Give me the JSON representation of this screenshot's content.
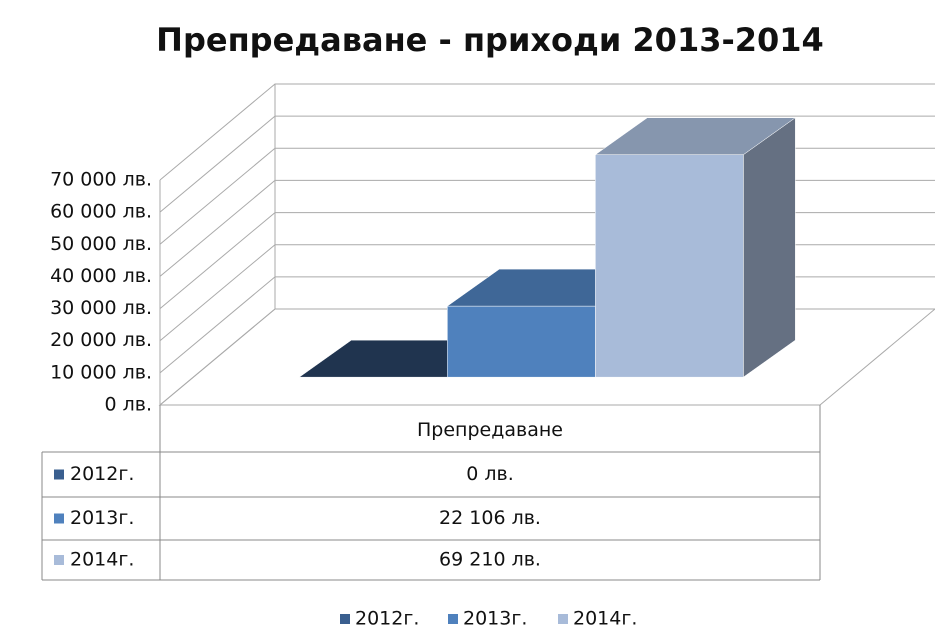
{
  "chart_data": {
    "type": "bar",
    "title": "Препредаване - приходи 2013-2014",
    "categories": [
      "Препредаване"
    ],
    "series": [
      {
        "name": "2012г.",
        "color": "#3a5f8f",
        "values": [
          0
        ],
        "value_labels": [
          "0 лв."
        ]
      },
      {
        "name": "2013г.",
        "color": "#4f81bd",
        "values": [
          22106
        ],
        "value_labels": [
          "22 106 лв."
        ]
      },
      {
        "name": "2014г.",
        "color": "#a8bbd9",
        "values": [
          69210
        ],
        "value_labels": [
          "69 210 лв."
        ]
      }
    ],
    "ylim": [
      0,
      70000
    ],
    "yticks": [
      {
        "value": 0,
        "label": "0 лв."
      },
      {
        "value": 10000,
        "label": "10 000 лв."
      },
      {
        "value": 20000,
        "label": "20 000 лв."
      },
      {
        "value": 30000,
        "label": "30 000 лв."
      },
      {
        "value": 40000,
        "label": "40 000 лв."
      },
      {
        "value": 50000,
        "label": "50 000 лв."
      },
      {
        "value": 60000,
        "label": "60 000 лв."
      },
      {
        "value": 70000,
        "label": "70 000 лв."
      }
    ],
    "grid": true,
    "legend": "bottom"
  }
}
